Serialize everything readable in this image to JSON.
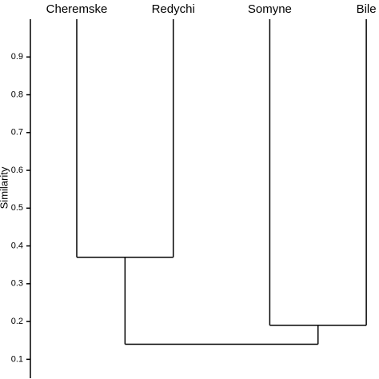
{
  "chart_data": {
    "type": "dendrogram",
    "y_label": "Similarity",
    "ylim": [
      0.05,
      1.0
    ],
    "yticks": [
      0.1,
      0.2,
      0.3,
      0.4,
      0.5,
      0.6,
      0.7,
      0.8,
      0.9
    ],
    "tree": {
      "height": 0.14,
      "children": [
        {
          "height": 0.37,
          "children": [
            {
              "label": "Cheremske"
            },
            {
              "label": "Redychi"
            }
          ]
        },
        {
          "height": 0.19,
          "children": [
            {
              "label": "Somyne"
            },
            {
              "label": "Bile"
            }
          ]
        }
      ]
    }
  }
}
